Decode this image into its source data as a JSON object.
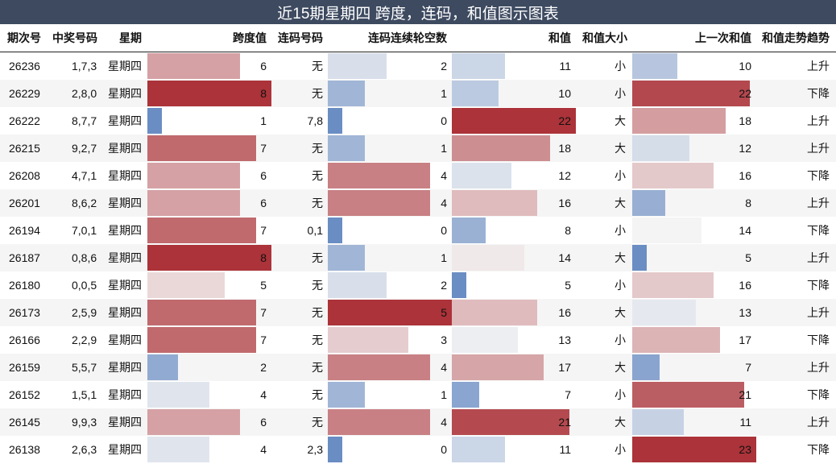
{
  "title": "近15期星期四 跨度，连码，和值图示图表",
  "chart_data": {
    "type": "table",
    "columns": [
      "期次号",
      "中奖号码",
      "星期",
      "跨度值",
      "连码号码",
      "连码连续轮空数",
      "和值",
      "和值大小",
      "上一次和值",
      "和值走势趋势"
    ],
    "bar_columns": {
      "span": {
        "min": 1,
        "max": 8
      },
      "gap": {
        "min": 0,
        "max": 5
      },
      "sum": {
        "min": 5,
        "max": 22
      },
      "prev_sum": {
        "min": 5,
        "max": 23
      }
    },
    "colors": {
      "high": "#ab3339",
      "mid": "#f4f4f4",
      "low": "#6a8dc3"
    },
    "rows": [
      {
        "issue": "26236",
        "numbers": "1,7,3",
        "weekday": "星期四",
        "span": 6,
        "consec": "无",
        "gap": 2,
        "sum": 11,
        "size": "小",
        "prev_sum": 10,
        "trend": "上升"
      },
      {
        "issue": "26229",
        "numbers": "2,8,0",
        "weekday": "星期四",
        "span": 8,
        "consec": "无",
        "gap": 1,
        "sum": 10,
        "size": "小",
        "prev_sum": 22,
        "trend": "下降"
      },
      {
        "issue": "26222",
        "numbers": "8,7,7",
        "weekday": "星期四",
        "span": 1,
        "consec": "7,8",
        "gap": 0,
        "sum": 22,
        "size": "大",
        "prev_sum": 18,
        "trend": "上升"
      },
      {
        "issue": "26215",
        "numbers": "9,2,7",
        "weekday": "星期四",
        "span": 7,
        "consec": "无",
        "gap": 1,
        "sum": 18,
        "size": "大",
        "prev_sum": 12,
        "trend": "上升"
      },
      {
        "issue": "26208",
        "numbers": "4,7,1",
        "weekday": "星期四",
        "span": 6,
        "consec": "无",
        "gap": 4,
        "sum": 12,
        "size": "小",
        "prev_sum": 16,
        "trend": "下降"
      },
      {
        "issue": "26201",
        "numbers": "8,6,2",
        "weekday": "星期四",
        "span": 6,
        "consec": "无",
        "gap": 4,
        "sum": 16,
        "size": "大",
        "prev_sum": 8,
        "trend": "上升"
      },
      {
        "issue": "26194",
        "numbers": "7,0,1",
        "weekday": "星期四",
        "span": 7,
        "consec": "0,1",
        "gap": 0,
        "sum": 8,
        "size": "小",
        "prev_sum": 14,
        "trend": "下降"
      },
      {
        "issue": "26187",
        "numbers": "0,8,6",
        "weekday": "星期四",
        "span": 8,
        "consec": "无",
        "gap": 1,
        "sum": 14,
        "size": "大",
        "prev_sum": 5,
        "trend": "上升"
      },
      {
        "issue": "26180",
        "numbers": "0,0,5",
        "weekday": "星期四",
        "span": 5,
        "consec": "无",
        "gap": 2,
        "sum": 5,
        "size": "小",
        "prev_sum": 16,
        "trend": "下降"
      },
      {
        "issue": "26173",
        "numbers": "2,5,9",
        "weekday": "星期四",
        "span": 7,
        "consec": "无",
        "gap": 5,
        "sum": 16,
        "size": "大",
        "prev_sum": 13,
        "trend": "上升"
      },
      {
        "issue": "26166",
        "numbers": "2,2,9",
        "weekday": "星期四",
        "span": 7,
        "consec": "无",
        "gap": 3,
        "sum": 13,
        "size": "小",
        "prev_sum": 17,
        "trend": "下降"
      },
      {
        "issue": "26159",
        "numbers": "5,5,7",
        "weekday": "星期四",
        "span": 2,
        "consec": "无",
        "gap": 4,
        "sum": 17,
        "size": "大",
        "prev_sum": 7,
        "trend": "上升"
      },
      {
        "issue": "26152",
        "numbers": "1,5,1",
        "weekday": "星期四",
        "span": 4,
        "consec": "无",
        "gap": 1,
        "sum": 7,
        "size": "小",
        "prev_sum": 21,
        "trend": "下降"
      },
      {
        "issue": "26145",
        "numbers": "9,9,3",
        "weekday": "星期四",
        "span": 6,
        "consec": "无",
        "gap": 4,
        "sum": 21,
        "size": "大",
        "prev_sum": 11,
        "trend": "上升"
      },
      {
        "issue": "26138",
        "numbers": "2,6,3",
        "weekday": "星期四",
        "span": 4,
        "consec": "2,3",
        "gap": 0,
        "sum": 11,
        "size": "小",
        "prev_sum": 23,
        "trend": "下降"
      }
    ]
  }
}
